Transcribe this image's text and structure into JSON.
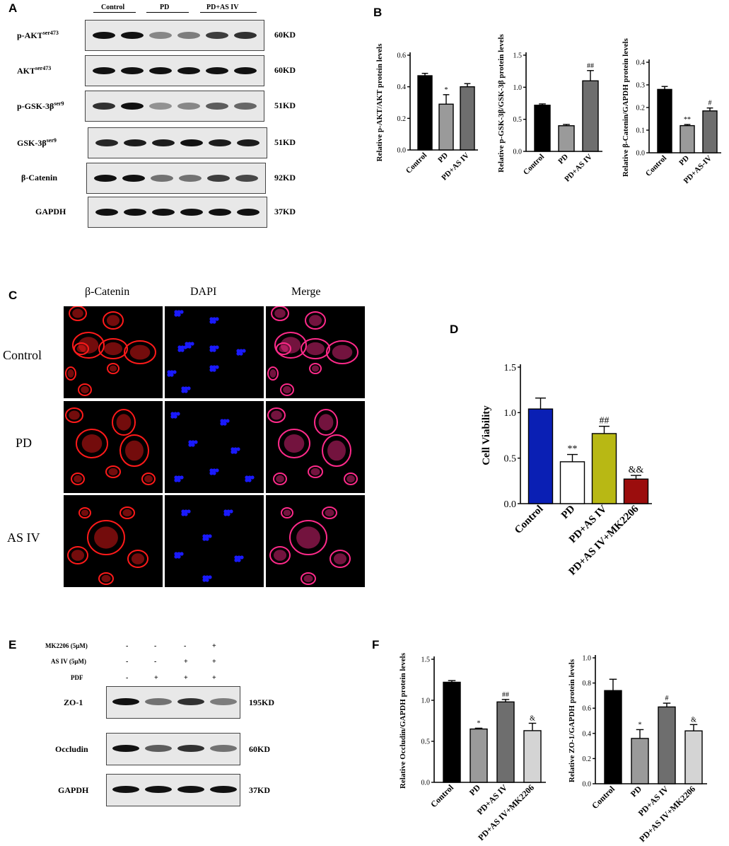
{
  "panels": {
    "A": "A",
    "B": "B",
    "C": "C",
    "D": "D",
    "E": "E",
    "F": "F"
  },
  "panel_a": {
    "groups": [
      "Control",
      "PD",
      "PD+AS IV"
    ],
    "rows": [
      {
        "label": "p-AKT",
        "sup": "ser473",
        "kd": "60KD"
      },
      {
        "label": "AKT",
        "sup": "ser473",
        "kd": "60KD"
      },
      {
        "label": "p-GSK-3β",
        "sup": "ser9",
        "kd": "51KD"
      },
      {
        "label": "GSK-3β",
        "sup": "ser9",
        "kd": "51KD"
      },
      {
        "label": "β-Catenin",
        "sup": "",
        "kd": "92KD"
      },
      {
        "label": "GAPDH",
        "sup": "",
        "kd": "37KD"
      }
    ]
  },
  "panel_c": {
    "columns": [
      "β-Catenin",
      "DAPI",
      "Merge"
    ],
    "rows": [
      "Control",
      "PD",
      "AS IV"
    ],
    "colors": {
      "catenin": "#ff1a1a",
      "dapi": "#1a1aff",
      "merge": "#ff2a8a"
    }
  },
  "panel_e": {
    "treatments": [
      {
        "label": "MK2206 (5μM)",
        "marks": [
          "-",
          "-",
          "-",
          "+"
        ]
      },
      {
        "label": "AS IV (5μM)",
        "marks": [
          "-",
          "-",
          "+",
          "+"
        ]
      },
      {
        "label": "PDF",
        "marks": [
          "-",
          "+",
          "+",
          "+"
        ]
      }
    ],
    "rows": [
      {
        "label": "ZO-1",
        "kd": "195KD"
      },
      {
        "label": "Occludin",
        "kd": "60KD"
      },
      {
        "label": "GAPDH",
        "kd": "37KD"
      }
    ]
  },
  "chart_data": [
    {
      "type": "bar",
      "panel": "B",
      "categories": [
        "Control",
        "PD",
        "PD+AS IV"
      ],
      "values": [
        0.47,
        0.29,
        0.4
      ],
      "errors": [
        0.015,
        0.06,
        0.02
      ],
      "annotations": [
        "",
        "*",
        ""
      ],
      "ylabel": "Relative p-AKT/AKT protein levels",
      "ylim": [
        0,
        0.6
      ],
      "yticks": [
        "0.0",
        "0.2",
        "0.4",
        "0.6"
      ],
      "colors": [
        "#000000",
        "#9a9a9a",
        "#6e6e6e"
      ]
    },
    {
      "type": "bar",
      "panel": "B",
      "categories": [
        "Control",
        "PD",
        "PD+AS IV"
      ],
      "values": [
        0.72,
        0.4,
        1.1
      ],
      "errors": [
        0.02,
        0.02,
        0.16
      ],
      "annotations": [
        "",
        "",
        "##"
      ],
      "ylabel": "Relative p-GSK-3β/GSK-3β protein levels",
      "ylim": [
        0,
        1.5
      ],
      "yticks": [
        "0.0",
        "0.5",
        "1.0",
        "1.5"
      ],
      "colors": [
        "#000000",
        "#9a9a9a",
        "#6e6e6e"
      ]
    },
    {
      "type": "bar",
      "panel": "B",
      "categories": [
        "Control",
        "PD",
        "PD+AS-IV"
      ],
      "values": [
        0.28,
        0.12,
        0.185
      ],
      "errors": [
        0.013,
        0.005,
        0.013
      ],
      "annotations": [
        "",
        "**",
        "#"
      ],
      "ylabel": "Relative β-Catenin/GAPDH protein levels",
      "ylim": [
        0,
        0.4
      ],
      "yticks": [
        "0.0",
        "0.1",
        "0.2",
        "0.3",
        "0.4"
      ],
      "colors": [
        "#000000",
        "#9a9a9a",
        "#6e6e6e"
      ]
    },
    {
      "type": "bar",
      "panel": "D",
      "categories": [
        "Control",
        "PD",
        "PD+AS IV",
        "PD+AS IV+MK2206"
      ],
      "values": [
        1.04,
        0.46,
        0.77,
        0.27
      ],
      "errors": [
        0.12,
        0.08,
        0.08,
        0.04
      ],
      "annotations": [
        "",
        "**",
        "##",
        "&&"
      ],
      "ylabel": "Cell Viability",
      "ylim": [
        0,
        1.5
      ],
      "yticks": [
        "0.0",
        "0.5",
        "1.0",
        "1.5"
      ],
      "colors": [
        "#0a1fb4",
        "#ffffff",
        "#b8b814",
        "#9b0d0d"
      ]
    },
    {
      "type": "bar",
      "panel": "F",
      "categories": [
        "Control",
        "PD",
        "PD+AS IV",
        "PD+AS IV+MK2206"
      ],
      "values": [
        1.22,
        0.65,
        0.98,
        0.63
      ],
      "errors": [
        0.02,
        0.01,
        0.03,
        0.09
      ],
      "annotations": [
        "",
        "*",
        "##",
        "&"
      ],
      "ylabel": "Relative Occludin/GAPDH protein levels",
      "ylim": [
        0,
        1.5
      ],
      "yticks": [
        "0.0",
        "0.5",
        "1.0",
        "1.5"
      ],
      "colors": [
        "#000000",
        "#9a9a9a",
        "#6e6e6e",
        "#d4d4d4"
      ]
    },
    {
      "type": "bar",
      "panel": "F",
      "categories": [
        "Control",
        "PD",
        "PD+AS IV",
        "PD+AS IV+MK2206"
      ],
      "values": [
        0.74,
        0.36,
        0.61,
        0.42
      ],
      "errors": [
        0.09,
        0.07,
        0.03,
        0.05
      ],
      "annotations": [
        "",
        "*",
        "#",
        "&"
      ],
      "ylabel": "Relative ZO-1/GAPDH protein levels",
      "ylim": [
        0,
        1.0
      ],
      "yticks": [
        "0.0",
        "0.2",
        "0.4",
        "0.6",
        "0.8",
        "1.0"
      ],
      "colors": [
        "#000000",
        "#9a9a9a",
        "#6e6e6e",
        "#d4d4d4"
      ]
    }
  ]
}
